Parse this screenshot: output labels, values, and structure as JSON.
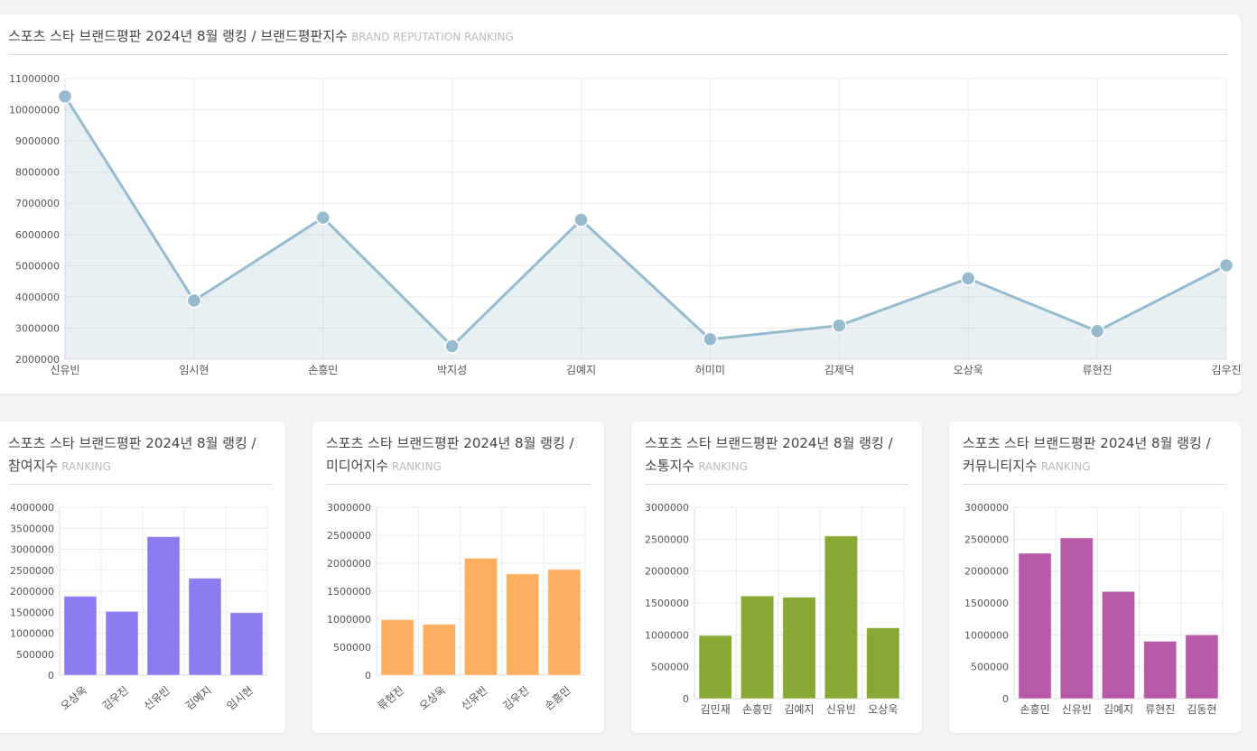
{
  "charts": [
    {
      "title": "스포츠 스타 브랜드평판 2024년 8월 랭킹 / 브랜드평판지수",
      "subtitle": "BRAND REPUTATION RANKING",
      "chart_data": {
        "type": "line",
        "categories": [
          "신유빈",
          "임시현",
          "손흥민",
          "박지성",
          "김예지",
          "허미미",
          "김제덕",
          "오상욱",
          "류현진",
          "김우진"
        ],
        "values": [
          10430000,
          3880000,
          6540000,
          2420000,
          6470000,
          2640000,
          3080000,
          4590000,
          2900000,
          5010000
        ],
        "ylim": [
          2000000,
          11000000
        ],
        "yticks": [
          2000000,
          3000000,
          4000000,
          5000000,
          6000000,
          7000000,
          8000000,
          9000000,
          10000000,
          11000000
        ],
        "color": "#97bbcd",
        "area": true
      }
    },
    {
      "title": "스포츠 스타 브랜드평판 2024년 8월 랭킹 / 참여지수",
      "subtitle": "RANKING",
      "chart_data": {
        "type": "bar",
        "categories": [
          "오상욱",
          "김우진",
          "신유빈",
          "김예지",
          "임시현"
        ],
        "values": [
          1880000,
          1520000,
          3300000,
          2310000,
          1490000
        ],
        "ylim": [
          0,
          4000000
        ],
        "yticks": [
          0,
          500000,
          1000000,
          1500000,
          2000000,
          2500000,
          3000000,
          3500000,
          4000000
        ],
        "color": "#8b7cf0",
        "rotate_labels": true
      }
    },
    {
      "title": "스포츠 스타 브랜드평판 2024년 8월 랭킹 / 미디어지수",
      "subtitle": "RANKING",
      "chart_data": {
        "type": "bar",
        "categories": [
          "류현진",
          "오상욱",
          "신유빈",
          "김우진",
          "손흥민"
        ],
        "values": [
          990000,
          910000,
          2090000,
          1810000,
          1890000
        ],
        "ylim": [
          0,
          3000000
        ],
        "yticks": [
          0,
          500000,
          1000000,
          1500000,
          2000000,
          2500000,
          3000000
        ],
        "color": "#feae5f",
        "rotate_labels": true
      }
    },
    {
      "title": "스포츠 스타 브랜드평판 2024년 8월 랭킹 / 소통지수",
      "subtitle": "RANKING",
      "chart_data": {
        "type": "bar",
        "categories": [
          "김민재",
          "손흥민",
          "김예지",
          "신유빈",
          "오상욱"
        ],
        "values": [
          990000,
          1610000,
          1590000,
          2550000,
          1110000
        ],
        "ylim": [
          0,
          3000000
        ],
        "yticks": [
          0,
          500000,
          1000000,
          1500000,
          2000000,
          2500000,
          3000000
        ],
        "color": "#87a832",
        "rotate_labels": false
      }
    },
    {
      "title": "스포츠 스타 브랜드평판 2024년 8월 랭킹 / 커뮤니티지수",
      "subtitle": "RANKING",
      "chart_data": {
        "type": "bar",
        "categories": [
          "손흥민",
          "신유빈",
          "김예지",
          "류현진",
          "김동현"
        ],
        "values": [
          2280000,
          2520000,
          1680000,
          900000,
          1000000
        ],
        "ylim": [
          0,
          3000000
        ],
        "yticks": [
          0,
          500000,
          1000000,
          1500000,
          2000000,
          2500000,
          3000000
        ],
        "color": "#b75aa8",
        "rotate_labels": false
      }
    }
  ]
}
